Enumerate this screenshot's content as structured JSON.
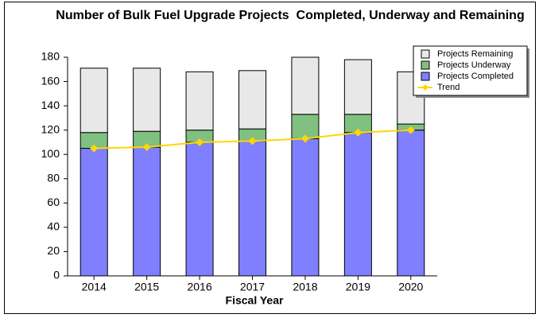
{
  "chart_data": {
    "type": "bar",
    "stacked": true,
    "title": "Number of Bulk Fuel Upgrade Projects  Completed, Underway and Remaining",
    "x_label": "Fiscal Year",
    "categories": [
      "2014",
      "2015",
      "2016",
      "2017",
      "2018",
      "2019",
      "2020"
    ],
    "series": [
      {
        "name": "Projects Completed",
        "color": "#7f7fff",
        "values": [
          105,
          106,
          110,
          111,
          113,
          118,
          120
        ]
      },
      {
        "name": "Projects Underway",
        "color": "#80c080",
        "values": [
          13,
          13,
          10,
          10,
          20,
          15,
          5
        ]
      },
      {
        "name": "Projects Remaining",
        "color": "#e8e8e8",
        "values": [
          53,
          52,
          48,
          48,
          47,
          45,
          43
        ]
      },
      {
        "name": "Trend",
        "type": "line",
        "color": "#ffd700",
        "values": [
          105,
          106,
          110,
          111,
          113,
          118,
          120
        ]
      }
    ],
    "legend_order": [
      2,
      1,
      0,
      3
    ],
    "legend": "top-right",
    "ylim": [
      0,
      180
    ],
    "yticks": [
      0,
      20,
      40,
      60,
      80,
      100,
      120,
      140,
      160,
      180
    ]
  }
}
